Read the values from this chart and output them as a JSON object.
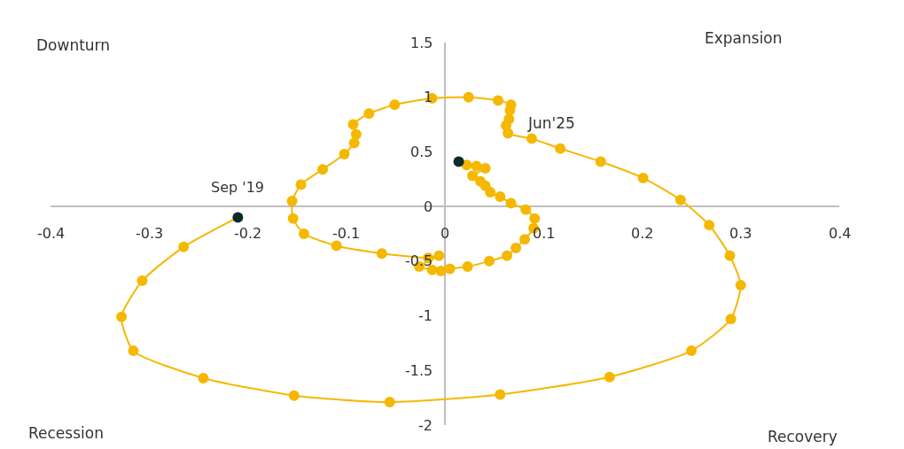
{
  "chart_data": {
    "type": "line",
    "x": [
      -0.21,
      -0.265,
      -0.307,
      -0.328,
      -0.316,
      -0.245,
      -0.153,
      -0.056,
      0.056,
      0.167,
      0.25,
      0.29,
      0.3,
      0.289,
      0.268,
      0.239,
      0.201,
      0.158,
      0.117,
      0.088,
      0.064,
      0.062,
      0.065,
      0.066,
      0.067,
      0.054,
      0.024,
      -0.013,
      -0.051,
      -0.077,
      -0.093,
      -0.09,
      -0.092,
      -0.102,
      -0.124,
      -0.146,
      -0.155,
      -0.154,
      -0.143,
      -0.11,
      -0.064,
      -0.017,
      -0.006,
      -0.026,
      -0.013,
      -0.004,
      0.005,
      0.023,
      0.045,
      0.063,
      0.072,
      0.081,
      0.09,
      0.091,
      0.082,
      0.067,
      0.056,
      0.046,
      0.041,
      0.036,
      0.028,
      0.041,
      0.032,
      0.022,
      0.014
    ],
    "series": [
      {
        "color": "#f5b800",
        "values": [
          -0.1,
          -0.37,
          -0.68,
          -1.01,
          -1.32,
          -1.57,
          -1.73,
          -1.79,
          -1.72,
          -1.56,
          -1.32,
          -1.03,
          -0.72,
          -0.45,
          -0.17,
          0.06,
          0.26,
          0.41,
          0.53,
          0.62,
          0.67,
          0.74,
          0.8,
          0.88,
          0.93,
          0.97,
          1.0,
          0.99,
          0.93,
          0.85,
          0.75,
          0.66,
          0.58,
          0.48,
          0.34,
          0.2,
          0.05,
          -0.11,
          -0.25,
          -0.36,
          -0.43,
          -0.47,
          -0.45,
          -0.55,
          -0.58,
          -0.59,
          -0.57,
          -0.55,
          -0.5,
          -0.45,
          -0.38,
          -0.3,
          -0.2,
          -0.11,
          -0.03,
          0.03,
          0.09,
          0.13,
          0.19,
          0.23,
          0.28,
          0.35,
          0.37,
          0.38,
          0.41
        ],
        "colors": [
          "#0d2b2b",
          "#f5b800",
          "#f5b800",
          "#f5b800",
          "#f5b800",
          "#f5b800",
          "#f5b800",
          "#f5b800",
          "#f5b800",
          "#f5b800",
          "#f5b800",
          "#f5b800",
          "#f5b800",
          "#f5b800",
          "#f5b800",
          "#f5b800",
          "#f5b800",
          "#f5b800",
          "#f5b800",
          "#f5b800",
          "#f5b800",
          "#f5b800",
          "#f5b800",
          "#f5b800",
          "#f5b800",
          "#f5b800",
          "#f5b800",
          "#f5b800",
          "#f5b800",
          "#f5b800",
          "#f5b800",
          "#f5b800",
          "#f5b800",
          "#f5b800",
          "#f5b800",
          "#f5b800",
          "#f5b800",
          "#f5b800",
          "#f5b800",
          "#f5b800",
          "#f5b800",
          "#f5b800",
          "#f5b800",
          "#f5b800",
          "#f5b800",
          "#f5b800",
          "#f5b800",
          "#f5b800",
          "#f5b800",
          "#f5b800",
          "#f5b800",
          "#f5b800",
          "#f5b800",
          "#f5b800",
          "#f5b800",
          "#f5b800",
          "#f5b800",
          "#f5b800",
          "#f5b800",
          "#f5b800",
          "#f5b800",
          "#f5b800",
          "#f5b800",
          "#f5b800",
          "#0d2b2b"
        ]
      }
    ],
    "xlim": [
      -0.4,
      0.4
    ],
    "xticks": [
      -0.4,
      -0.3,
      -0.2,
      -0.1,
      0,
      0.1,
      0.2,
      0.3,
      0.4
    ],
    "ylim": [
      -2,
      1.5
    ],
    "yticks": [
      -2,
      -1.5,
      -1,
      -0.5,
      0,
      0.5,
      1,
      1.5
    ],
    "marker": "circle",
    "line_style": "solid",
    "annotations": [
      {
        "text": "Sep '19",
        "x": -0.21,
        "y": -0.1
      },
      "Jun'25",
      "Downturn",
      "Expansion",
      "Recession",
      "Recovery"
    ]
  }
}
